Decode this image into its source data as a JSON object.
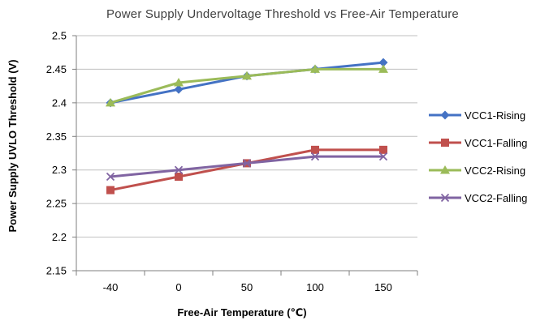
{
  "chart_data": {
    "type": "line",
    "title": "Power Supply Undervoltage Threshold vs Free-Air  Temperature",
    "xlabel": "Free-Air Temperature (℃)",
    "ylabel": "Power Supply UVLO Threshold (V)",
    "categories": [
      "-40",
      "0",
      "50",
      "100",
      "150"
    ],
    "ylim": [
      2.15,
      2.5
    ],
    "yticks": [
      "2.15",
      "2.2",
      "2.25",
      "2.3",
      "2.35",
      "2.4",
      "2.45",
      "2.5"
    ],
    "grid": true,
    "legend_position": "right",
    "series": [
      {
        "name": "VCC1-Rising",
        "color": "#4472C4",
        "marker": "diamond",
        "values": [
          2.4,
          2.42,
          2.44,
          2.45,
          2.46
        ]
      },
      {
        "name": "VCC1-Falling",
        "color": "#C0504D",
        "marker": "square",
        "values": [
          2.27,
          2.29,
          2.31,
          2.33,
          2.33
        ]
      },
      {
        "name": "VCC2-Rising",
        "color": "#9BBB59",
        "marker": "triangle",
        "values": [
          2.4,
          2.43,
          2.44,
          2.45,
          2.45
        ]
      },
      {
        "name": "VCC2-Falling",
        "color": "#8064A2",
        "marker": "x",
        "values": [
          2.29,
          2.3,
          2.31,
          2.32,
          2.32
        ]
      }
    ]
  }
}
